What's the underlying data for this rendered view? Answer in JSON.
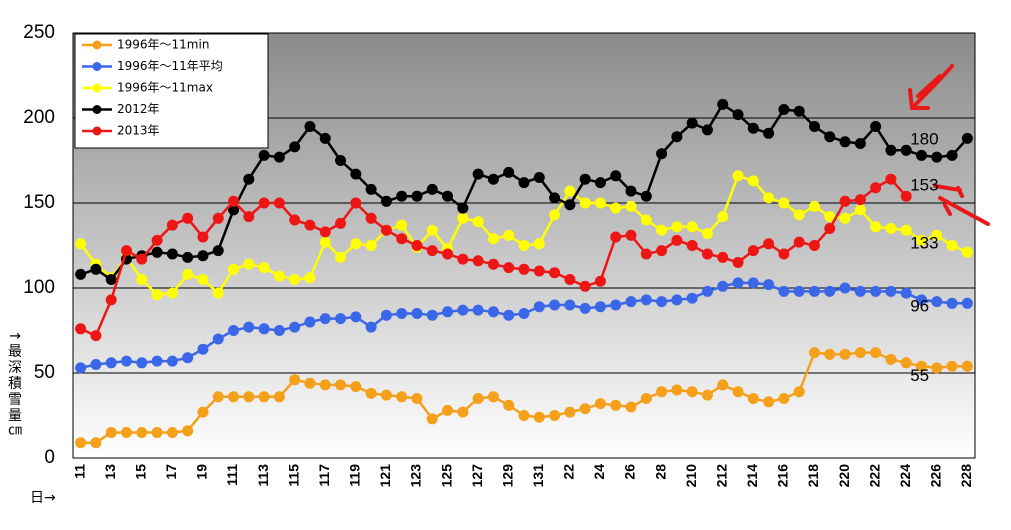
{
  "chart_data": {
    "type": "line",
    "y_label": "↑最深積雪量㎝",
    "x_label": "日→",
    "categories": [
      "11",
      null,
      "13",
      null,
      "15",
      null,
      "17",
      null,
      "19",
      null,
      "111",
      null,
      "113",
      null,
      "115",
      null,
      "117",
      null,
      "119",
      null,
      "121",
      null,
      "123",
      null,
      "125",
      null,
      "127",
      null,
      "129",
      null,
      "131",
      null,
      "22",
      null,
      "24",
      null,
      "26",
      null,
      "28",
      null,
      "210",
      null,
      "212",
      null,
      "214",
      null,
      "216",
      null,
      "218",
      null,
      "220",
      null,
      "222",
      null,
      "224",
      null,
      "226",
      null,
      "228"
    ],
    "series": [
      {
        "name": "1996年～11min",
        "color": "#f5a01a",
        "values": [
          9,
          9,
          15,
          15,
          15,
          15,
          15,
          16,
          27,
          36,
          36,
          36,
          36,
          36,
          46,
          44,
          43,
          43,
          42,
          38,
          37,
          36,
          35,
          23,
          28,
          27,
          35,
          36,
          31,
          25,
          24,
          25,
          27,
          29,
          32,
          31,
          30,
          35,
          39,
          40,
          39,
          37,
          43,
          39,
          35,
          33,
          35,
          39,
          62,
          61,
          61,
          62,
          62,
          58,
          56,
          54,
          53,
          54,
          54
        ]
      },
      {
        "name": "1996年～11年平均",
        "color": "#3a66e8",
        "values": [
          53,
          55,
          56,
          57,
          56,
          57,
          57,
          59,
          64,
          70,
          75,
          77,
          76,
          75,
          77,
          80,
          82,
          82,
          83,
          77,
          84,
          85,
          85,
          84,
          86,
          87,
          87,
          86,
          84,
          85,
          89,
          90,
          90,
          88,
          89,
          90,
          92,
          93,
          92,
          93,
          94,
          98,
          101,
          103,
          103,
          102,
          98,
          98,
          98,
          98,
          100,
          98,
          98,
          98,
          97,
          93,
          92,
          91,
          91
        ]
      },
      {
        "name": "1996年～11max",
        "color": "#ffff00",
        "values": [
          126,
          114,
          106,
          118,
          105,
          96,
          97,
          108,
          105,
          97,
          111,
          114,
          112,
          107,
          105,
          106,
          127,
          118,
          126,
          125,
          134,
          137,
          124,
          134,
          123,
          141,
          139,
          129,
          131,
          125,
          126,
          143,
          157,
          150,
          150,
          147,
          148,
          140,
          134,
          136,
          136,
          132,
          142,
          166,
          163,
          153,
          150,
          143,
          148,
          142,
          141,
          146,
          136,
          135,
          134,
          128,
          131,
          125,
          121
        ]
      },
      {
        "name": "2012年",
        "color": "#000000",
        "values": [
          108,
          111,
          105,
          117,
          119,
          121,
          120,
          118,
          119,
          122,
          146,
          164,
          178,
          177,
          183,
          195,
          188,
          175,
          167,
          158,
          151,
          154,
          154,
          158,
          154,
          147,
          167,
          164,
          168,
          162,
          165,
          153,
          149,
          164,
          162,
          166,
          157,
          154,
          179,
          189,
          197,
          193,
          208,
          202,
          194,
          191,
          205,
          204,
          195,
          189,
          186,
          185,
          195,
          181,
          181,
          178,
          177,
          178,
          188
        ]
      },
      {
        "name": "2013年",
        "color": "#ee1515",
        "values": [
          76,
          72,
          93,
          122,
          117,
          128,
          137,
          141,
          130,
          141,
          151,
          142,
          150,
          150,
          140,
          137,
          133,
          138,
          150,
          141,
          134,
          129,
          125,
          122,
          120,
          117,
          116,
          114,
          112,
          111,
          110,
          109,
          105,
          101,
          104,
          130,
          131,
          120,
          122,
          128,
          125,
          120,
          118,
          115,
          122,
          126,
          120,
          127,
          125,
          135,
          151,
          152,
          159,
          164,
          154,
          null,
          null,
          null,
          null
        ]
      }
    ],
    "annotations": [
      {
        "label": "180",
        "value": 180
      },
      {
        "label": "153",
        "value": 153
      },
      {
        "label": "133",
        "value": 133
      },
      {
        "label": "96",
        "value": 96
      },
      {
        "label": "55",
        "value": 55
      }
    ],
    "ylim": [
      0,
      250
    ],
    "yticks": [
      0,
      50,
      100,
      150,
      200,
      250
    ],
    "grid": true,
    "legend": "top-left"
  }
}
